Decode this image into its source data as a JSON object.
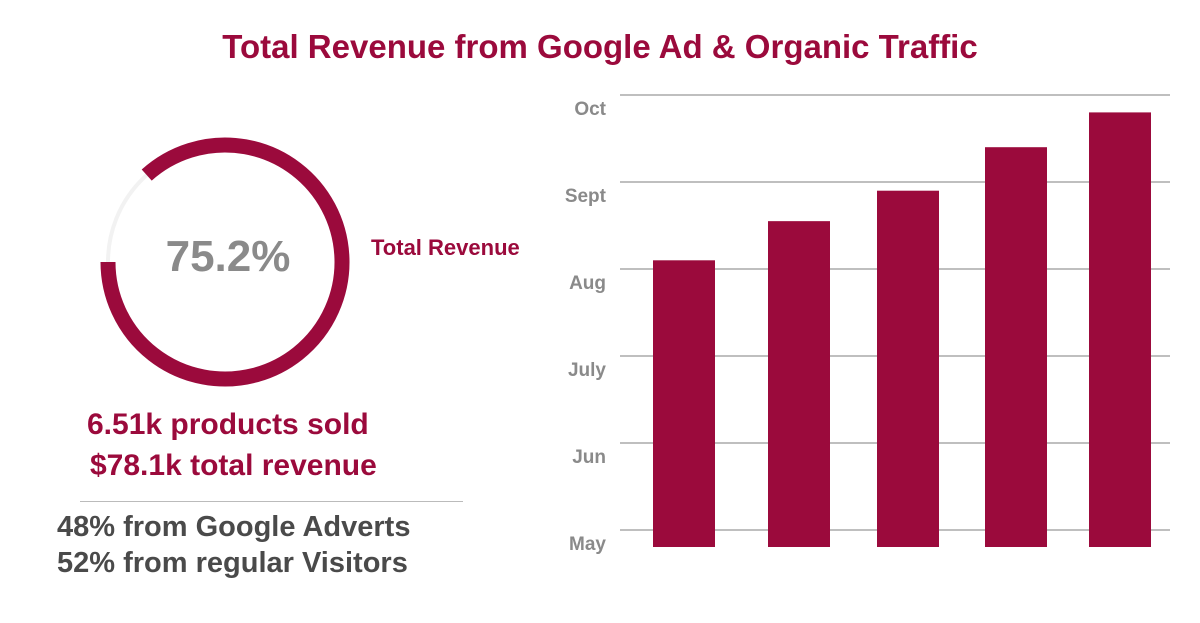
{
  "title": "Total Revenue from Google Ad & Organic Traffic",
  "colors": {
    "accent": "#9b0a3c",
    "text_gray": "#8a8a8a",
    "grid": "#999999"
  },
  "donut": {
    "percent_label": "75.2%",
    "legend_label": "Total Revenue"
  },
  "stats": {
    "products_sold": "6.51k products sold",
    "total_revenue": "$78.1k total revenue",
    "google": "48% from Google Adverts",
    "regular": "52% from regular Visitors"
  },
  "chart_data": {
    "type": "bar",
    "yticks": [
      "May",
      "Jun",
      "July",
      "Aug",
      "Sept",
      "Oct"
    ],
    "values": [
      3.1,
      3.55,
      3.9,
      4.4,
      4.8
    ],
    "ylim": [
      "May",
      "Oct"
    ],
    "grid": true,
    "title": "",
    "xlabel": "",
    "ylabel": ""
  }
}
